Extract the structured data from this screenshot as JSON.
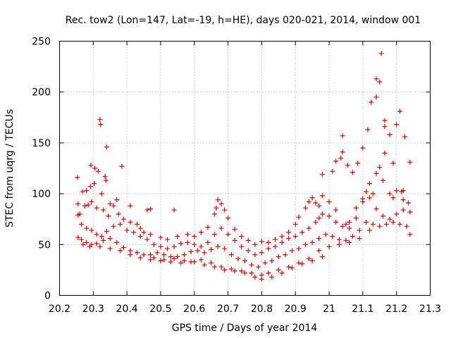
{
  "chart_data": {
    "type": "scatter",
    "title": "Rec. tow2 (Lon=147, Lat=-19, h=HE), days 020-021, 2014, window 001",
    "xlabel": "GPS time / Days of year 2014",
    "ylabel": "STEC from uqrg / TECUs",
    "xlim": [
      20.2,
      21.3
    ],
    "ylim": [
      0,
      250
    ],
    "xticks": [
      20.2,
      20.3,
      20.4,
      20.5,
      20.6,
      20.7,
      20.8,
      20.9,
      21,
      21.1,
      21.2,
      21.3
    ],
    "xtick_labels": [
      "20.2",
      "20.3",
      "20.4",
      "20.5",
      "20.6",
      "20.7",
      "20.8",
      "20.9",
      "21",
      "21.1",
      "21.2",
      "21.3"
    ],
    "yticks": [
      0,
      50,
      100,
      150,
      200,
      250
    ],
    "ytick_labels": [
      "0",
      "50",
      "100",
      "150",
      "200",
      "250"
    ],
    "grid": true,
    "marker": "+",
    "color": "#cc0000",
    "series": [
      {
        "points": [
          [
            20.253,
            116
          ],
          [
            20.268,
            102
          ],
          [
            20.28,
            103
          ],
          [
            20.293,
            128
          ],
          [
            20.305,
            125
          ],
          [
            20.315,
            122
          ],
          [
            20.32,
            173
          ],
          [
            20.322,
            168
          ],
          [
            20.34,
            146
          ],
          [
            20.335,
            117
          ],
          [
            20.338,
            113
          ],
          [
            20.385,
            127
          ],
          [
            20.292,
            107
          ],
          [
            20.303,
            110
          ],
          [
            20.325,
            100
          ],
          [
            20.35,
            90
          ],
          [
            20.36,
            88
          ],
          [
            20.37,
            94
          ],
          [
            20.41,
            88
          ],
          [
            20.46,
            84
          ],
          [
            20.47,
            85
          ],
          [
            20.54,
            84
          ],
          [
            20.98,
            119
          ],
          [
            21.01,
            122
          ],
          [
            21.02,
            132
          ],
          [
            21.035,
            135
          ],
          [
            21.04,
            141
          ],
          [
            21.04,
            157
          ],
          [
            21.055,
            128
          ],
          [
            21.07,
            121
          ],
          [
            21.085,
            130
          ],
          [
            21.1,
            145
          ],
          [
            21.115,
            163
          ],
          [
            21.125,
            190
          ],
          [
            21.14,
            195
          ],
          [
            21.14,
            213
          ],
          [
            21.15,
            210
          ],
          [
            21.155,
            238
          ],
          [
            21.165,
            172
          ],
          [
            21.165,
            166
          ],
          [
            21.165,
            140
          ],
          [
            21.18,
            158
          ],
          [
            21.19,
            130
          ],
          [
            21.2,
            168
          ],
          [
            21.21,
            181
          ],
          [
            21.215,
            102
          ],
          [
            21.225,
            156
          ],
          [
            21.24,
            131
          ],
          [
            21.2,
            103
          ],
          [
            21.22,
            103
          ]
        ]
      },
      {
        "points": [
          [
            20.255,
            90
          ],
          [
            20.26,
            80
          ],
          [
            20.275,
            88
          ],
          [
            20.285,
            89
          ],
          [
            20.295,
            92
          ],
          [
            20.31,
            86
          ],
          [
            20.33,
            84
          ],
          [
            20.345,
            78
          ],
          [
            20.375,
            80
          ],
          [
            20.39,
            75
          ],
          [
            20.41,
            72
          ],
          [
            20.43,
            70
          ],
          [
            20.44,
            66
          ],
          [
            20.45,
            62
          ],
          [
            20.47,
            60
          ],
          [
            20.5,
            57
          ],
          [
            20.52,
            55
          ],
          [
            20.55,
            58
          ],
          [
            20.58,
            60
          ],
          [
            20.6,
            58
          ],
          [
            20.62,
            62
          ],
          [
            20.64,
            67
          ],
          [
            20.66,
            80
          ],
          [
            20.665,
            86
          ],
          [
            20.67,
            94
          ],
          [
            20.68,
            90
          ],
          [
            20.69,
            84
          ],
          [
            20.7,
            76
          ],
          [
            20.72,
            65
          ],
          [
            20.74,
            58
          ],
          [
            20.76,
            54
          ],
          [
            20.78,
            50
          ],
          [
            20.8,
            53
          ],
          [
            20.82,
            52
          ],
          [
            20.84,
            55
          ],
          [
            20.86,
            58
          ],
          [
            20.88,
            62
          ],
          [
            20.9,
            70
          ],
          [
            20.91,
            77
          ],
          [
            20.93,
            86
          ],
          [
            20.94,
            92
          ],
          [
            20.95,
            96
          ],
          [
            20.96,
            91
          ],
          [
            20.97,
            88
          ],
          [
            20.98,
            98
          ],
          [
            21.0,
            92
          ],
          [
            21.02,
            84
          ],
          [
            21.05,
            70
          ],
          [
            21.06,
            66
          ],
          [
            21.08,
            76
          ],
          [
            21.1,
            95
          ],
          [
            21.11,
            102
          ],
          [
            21.12,
            110
          ],
          [
            21.13,
            100
          ],
          [
            21.14,
            120
          ],
          [
            21.15,
            126
          ],
          [
            21.16,
            113
          ],
          [
            21.18,
            100
          ],
          [
            21.19,
            96
          ],
          [
            21.22,
            94
          ],
          [
            21.235,
            91
          ]
        ]
      },
      {
        "points": [
          [
            20.255,
            79
          ],
          [
            20.265,
            70
          ],
          [
            20.28,
            66
          ],
          [
            20.295,
            64
          ],
          [
            20.31,
            60
          ],
          [
            20.325,
            58
          ],
          [
            20.34,
            63
          ],
          [
            20.36,
            68
          ],
          [
            20.38,
            70
          ],
          [
            20.4,
            64
          ],
          [
            20.42,
            62
          ],
          [
            20.44,
            58
          ],
          [
            20.46,
            55
          ],
          [
            20.48,
            50
          ],
          [
            20.5,
            48
          ],
          [
            20.52,
            46
          ],
          [
            20.54,
            48
          ],
          [
            20.56,
            51
          ],
          [
            20.58,
            52
          ],
          [
            20.6,
            50
          ],
          [
            20.62,
            48
          ],
          [
            20.64,
            52
          ],
          [
            20.66,
            60
          ],
          [
            20.68,
            66
          ],
          [
            20.7,
            60
          ],
          [
            20.72,
            54
          ],
          [
            20.74,
            48
          ],
          [
            20.76,
            44
          ],
          [
            20.78,
            40
          ],
          [
            20.8,
            42
          ],
          [
            20.82,
            46
          ],
          [
            20.84,
            48
          ],
          [
            20.86,
            52
          ],
          [
            20.88,
            56
          ],
          [
            20.9,
            58
          ],
          [
            20.92,
            62
          ],
          [
            20.94,
            66
          ],
          [
            20.96,
            72
          ],
          [
            20.97,
            76
          ],
          [
            20.98,
            80
          ],
          [
            21.0,
            78
          ],
          [
            21.02,
            72
          ],
          [
            21.04,
            68
          ],
          [
            21.06,
            72
          ],
          [
            21.08,
            86
          ],
          [
            21.1,
            92
          ],
          [
            21.12,
            96
          ],
          [
            21.14,
            85
          ],
          [
            21.16,
            78
          ],
          [
            21.18,
            75
          ],
          [
            21.2,
            80
          ],
          [
            21.22,
            84
          ],
          [
            21.24,
            82
          ]
        ]
      },
      {
        "points": [
          [
            20.255,
            57
          ],
          [
            20.265,
            55
          ],
          [
            20.28,
            52
          ],
          [
            20.295,
            50
          ],
          [
            20.31,
            51
          ],
          [
            20.33,
            54
          ],
          [
            20.35,
            56
          ],
          [
            20.37,
            52
          ],
          [
            20.39,
            47
          ],
          [
            20.41,
            44
          ],
          [
            20.43,
            42
          ],
          [
            20.45,
            40
          ],
          [
            20.47,
            40
          ],
          [
            20.49,
            42
          ],
          [
            20.51,
            40
          ],
          [
            20.53,
            38
          ],
          [
            20.55,
            38
          ],
          [
            20.57,
            40
          ],
          [
            20.59,
            43
          ],
          [
            20.61,
            44
          ],
          [
            20.63,
            42
          ],
          [
            20.65,
            45
          ],
          [
            20.67,
            48
          ],
          [
            20.69,
            46
          ],
          [
            20.71,
            40
          ],
          [
            20.73,
            36
          ],
          [
            20.75,
            34
          ],
          [
            20.77,
            30
          ],
          [
            20.79,
            28
          ],
          [
            20.81,
            32
          ],
          [
            20.83,
            34
          ],
          [
            20.85,
            38
          ],
          [
            20.87,
            40
          ],
          [
            20.89,
            44
          ],
          [
            20.91,
            46
          ],
          [
            20.93,
            50
          ],
          [
            20.95,
            52
          ],
          [
            20.97,
            56
          ],
          [
            20.99,
            60
          ],
          [
            21.01,
            58
          ],
          [
            21.03,
            55
          ],
          [
            21.05,
            54
          ],
          [
            21.07,
            58
          ],
          [
            21.09,
            64
          ],
          [
            21.11,
            72
          ],
          [
            21.13,
            70
          ],
          [
            21.15,
            68
          ],
          [
            21.17,
            70
          ],
          [
            21.19,
            72
          ],
          [
            21.21,
            70
          ],
          [
            21.23,
            68
          ],
          [
            21.24,
            60
          ]
        ]
      },
      {
        "points": [
          [
            20.27,
            50
          ],
          [
            20.29,
            48
          ],
          [
            20.32,
            48
          ],
          [
            20.35,
            46
          ],
          [
            20.38,
            44
          ],
          [
            20.41,
            40
          ],
          [
            20.44,
            37
          ],
          [
            20.47,
            35
          ],
          [
            20.5,
            34
          ],
          [
            20.53,
            33
          ],
          [
            20.56,
            32
          ],
          [
            20.59,
            33
          ],
          [
            20.62,
            35
          ],
          [
            20.65,
            32
          ],
          [
            20.68,
            28
          ],
          [
            20.71,
            26
          ],
          [
            20.74,
            24
          ],
          [
            20.77,
            22
          ],
          [
            20.8,
            20
          ],
          [
            20.82,
            22
          ],
          [
            20.85,
            25
          ],
          [
            20.88,
            28
          ],
          [
            20.91,
            32
          ],
          [
            20.94,
            36
          ],
          [
            20.97,
            44
          ],
          [
            21.0,
            48
          ],
          [
            21.03,
            50
          ],
          [
            21.06,
            52
          ],
          [
            21.09,
            56
          ],
          [
            21.12,
            64
          ]
        ]
      },
      {
        "points": [
          [
            20.48,
            37
          ],
          [
            20.51,
            35
          ],
          [
            20.54,
            36
          ],
          [
            20.57,
            34
          ],
          [
            20.6,
            33
          ],
          [
            20.63,
            30
          ],
          [
            20.66,
            28
          ],
          [
            20.69,
            25
          ],
          [
            20.72,
            24
          ],
          [
            20.75,
            22
          ],
          [
            20.78,
            18
          ],
          [
            20.8,
            16
          ],
          [
            20.83,
            18
          ],
          [
            20.86,
            22
          ],
          [
            20.89,
            27
          ],
          [
            20.92,
            31
          ],
          [
            20.95,
            34
          ],
          [
            20.98,
            38
          ]
        ]
      }
    ]
  }
}
